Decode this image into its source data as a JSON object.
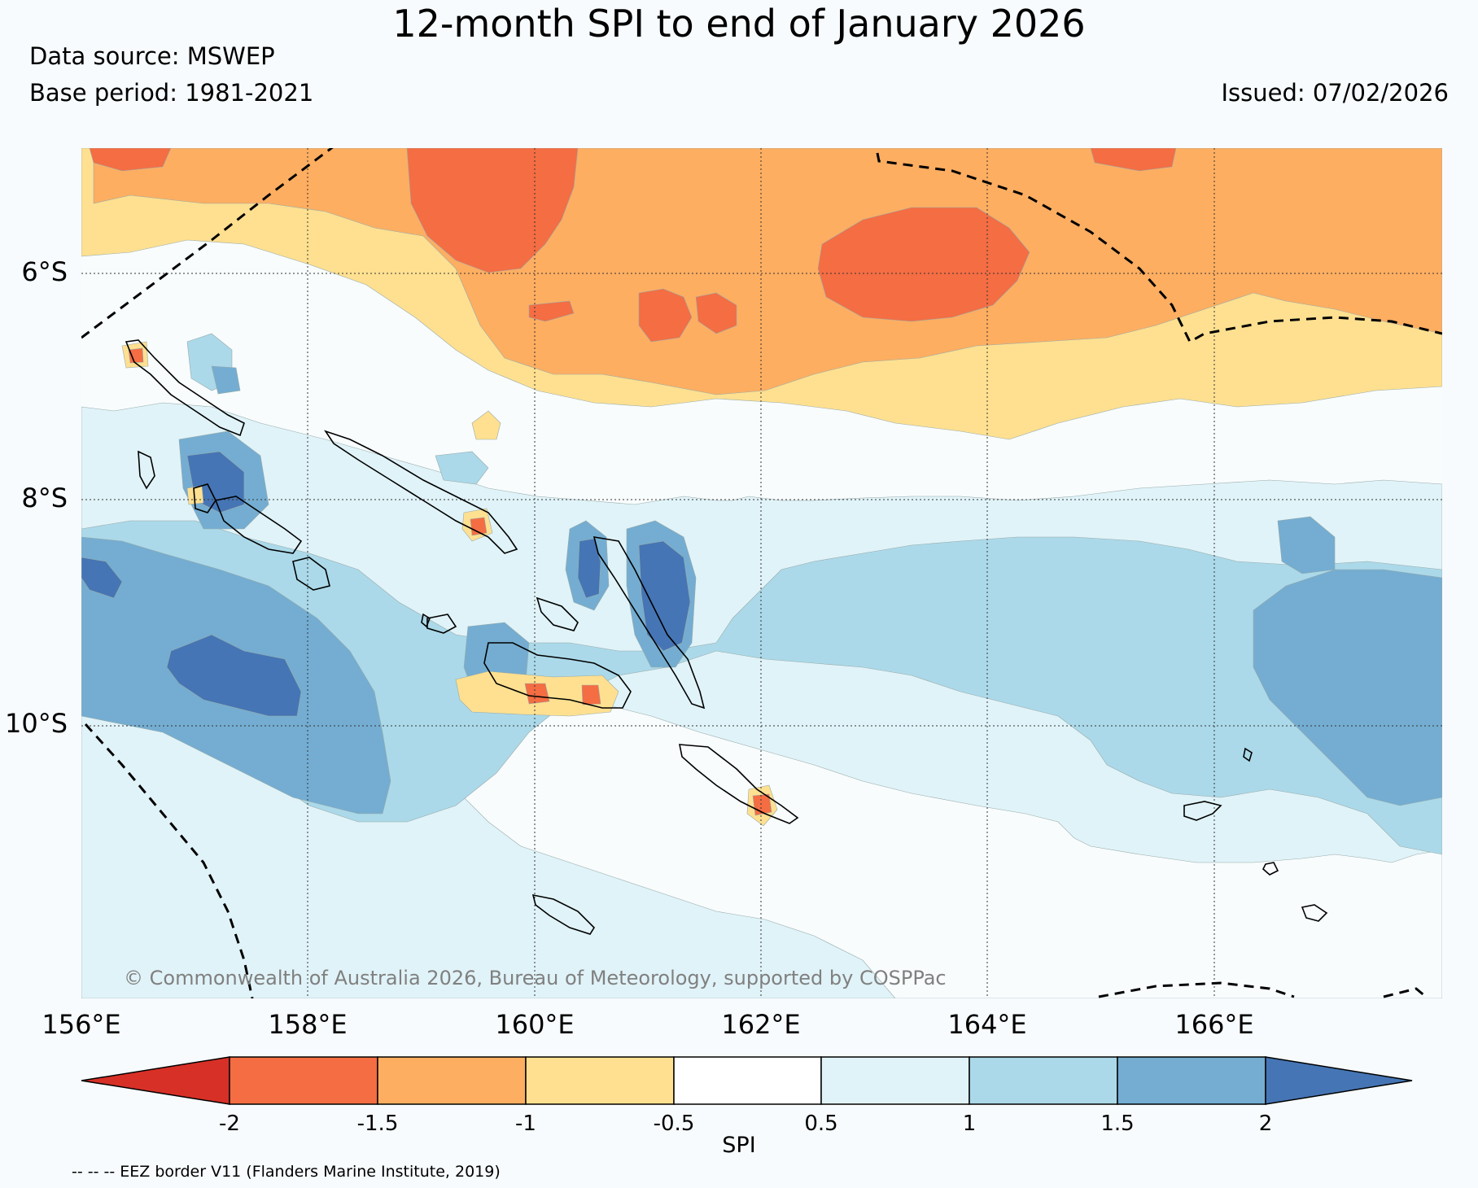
{
  "header": {
    "title": "12-month SPI to end of January 2026",
    "data_source": "Data source: MSWEP",
    "base_period": "Base period: 1981-2021",
    "issued": "Issued: 07/02/2026"
  },
  "map": {
    "lat_labels": [
      "6°S",
      "8°S",
      "10°S"
    ],
    "lon_labels": [
      "156°E",
      "158°E",
      "160°E",
      "162°E",
      "164°E",
      "166°E"
    ],
    "copyright": "© Commonwealth of Australia 2026, Bureau of Meteorology, supported by COSPPac"
  },
  "colorbar": {
    "label": "SPI",
    "ticks": [
      "-2",
      "-1.5",
      "-1",
      "-0.5",
      "0.5",
      "1",
      "1.5",
      "2"
    ],
    "colors": [
      "#d73027",
      "#f46d43",
      "#fdae61",
      "#fee090",
      "#ffffff",
      "#e0f3f8",
      "#abd9e9",
      "#74add1",
      "#4575b4"
    ]
  },
  "legend": {
    "eez": "-- -- -- EEZ border V11 (Flanders Marine Institute, 2019)"
  },
  "colors": {
    "c_m2": "#f46d43",
    "c_m15": "#fdae61",
    "c_m1": "#fee090",
    "c_0": "#f8fcfd",
    "c_05": "#e0f3f8",
    "c_1": "#abd9e9",
    "c_15": "#74add1",
    "c_2": "#4575b4",
    "c_max": "#d73027"
  }
}
